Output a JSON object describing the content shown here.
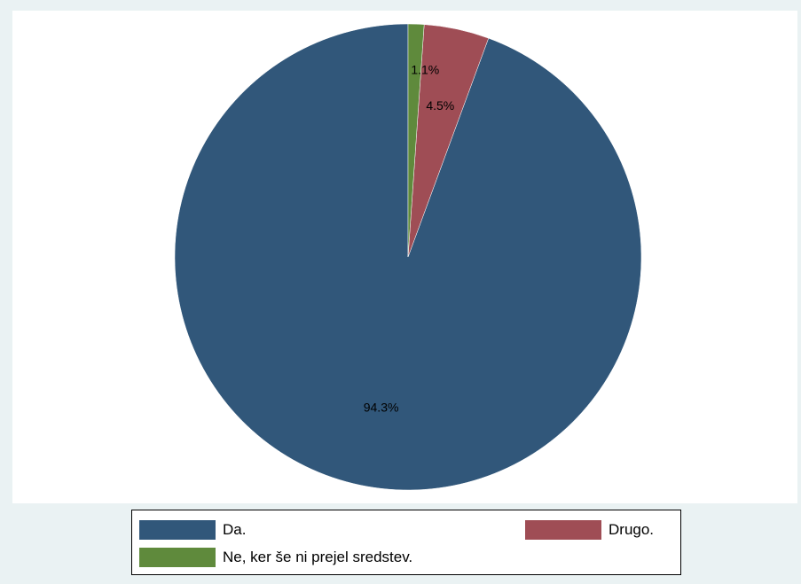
{
  "chart_data": {
    "type": "pie",
    "title": "",
    "slices": [
      {
        "label": "Da.",
        "value": 94.3,
        "display": "94.3%",
        "color": "#31577a"
      },
      {
        "label": "Drugo.",
        "value": 4.5,
        "display": "4.5%",
        "color": "#9f4d55"
      },
      {
        "label": "Ne, ker še ni prejel sredstev.",
        "value": 1.1,
        "display": "1.1%",
        "color": "#5f8a3c"
      }
    ],
    "start_angle": "12 o'clock",
    "direction": "counter-clockwise",
    "legend_position": "bottom"
  },
  "legend": {
    "items": [
      {
        "label": "Da.",
        "color": "#31577a"
      },
      {
        "label": "Drugo.",
        "color": "#9f4d55"
      },
      {
        "label": "Ne, ker še ni prejel sredstev.",
        "color": "#5f8a3c"
      }
    ]
  },
  "colors": {
    "background": "#eaf2f3",
    "plot_background": "#ffffff"
  }
}
